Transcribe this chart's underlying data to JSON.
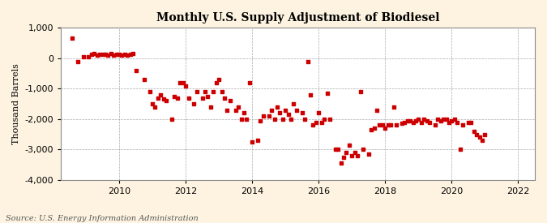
{
  "title": "Monthly U.S. Supply Adjustment of Biodiesel",
  "ylabel": "Thousand Barrels",
  "source": "Source: U.S. Energy Information Administration",
  "background_color": "#fdf3e0",
  "plot_background_color": "#ffffff",
  "marker_color": "#cc0000",
  "marker": "s",
  "marker_size": 3.5,
  "ylim": [
    -4000,
    1000
  ],
  "yticks": [
    -4000,
    -3000,
    -2000,
    -1000,
    0,
    1000
  ],
  "xlim_start": 2008.25,
  "xlim_end": 2022.5,
  "xticks": [
    2010,
    2012,
    2014,
    2016,
    2018,
    2020,
    2022
  ],
  "data": [
    [
      2008.583,
      650
    ],
    [
      2008.75,
      -100
    ],
    [
      2008.917,
      50
    ],
    [
      2009.083,
      50
    ],
    [
      2009.167,
      130
    ],
    [
      2009.25,
      150
    ],
    [
      2009.333,
      100
    ],
    [
      2009.417,
      130
    ],
    [
      2009.5,
      120
    ],
    [
      2009.583,
      130
    ],
    [
      2009.667,
      100
    ],
    [
      2009.75,
      150
    ],
    [
      2009.833,
      100
    ],
    [
      2009.917,
      120
    ],
    [
      2010.0,
      120
    ],
    [
      2010.083,
      100
    ],
    [
      2010.167,
      130
    ],
    [
      2010.25,
      100
    ],
    [
      2010.333,
      120
    ],
    [
      2010.417,
      150
    ],
    [
      2010.5,
      -400
    ],
    [
      2010.75,
      -700
    ],
    [
      2010.917,
      -1100
    ],
    [
      2011.0,
      -1500
    ],
    [
      2011.083,
      -1600
    ],
    [
      2011.167,
      -1300
    ],
    [
      2011.25,
      -1200
    ],
    [
      2011.333,
      -1350
    ],
    [
      2011.417,
      -1400
    ],
    [
      2011.583,
      -2000
    ],
    [
      2011.667,
      -1250
    ],
    [
      2011.75,
      -1300
    ],
    [
      2011.833,
      -800
    ],
    [
      2011.917,
      -800
    ],
    [
      2012.0,
      -900
    ],
    [
      2012.083,
      -1300
    ],
    [
      2012.25,
      -1500
    ],
    [
      2012.333,
      -1100
    ],
    [
      2012.5,
      -1300
    ],
    [
      2012.583,
      -1100
    ],
    [
      2012.667,
      -1250
    ],
    [
      2012.75,
      -1600
    ],
    [
      2012.833,
      -1100
    ],
    [
      2012.917,
      -800
    ],
    [
      2013.0,
      -700
    ],
    [
      2013.083,
      -1100
    ],
    [
      2013.167,
      -1300
    ],
    [
      2013.25,
      -1700
    ],
    [
      2013.333,
      -1400
    ],
    [
      2013.5,
      -1700
    ],
    [
      2013.583,
      -1600
    ],
    [
      2013.667,
      -2000
    ],
    [
      2013.75,
      -1800
    ],
    [
      2013.833,
      -2000
    ],
    [
      2013.917,
      -800
    ],
    [
      2014.0,
      -2750
    ],
    [
      2014.167,
      -2700
    ],
    [
      2014.25,
      -2050
    ],
    [
      2014.333,
      -1900
    ],
    [
      2014.5,
      -1900
    ],
    [
      2014.583,
      -1700
    ],
    [
      2014.667,
      -2000
    ],
    [
      2014.75,
      -1600
    ],
    [
      2014.833,
      -1800
    ],
    [
      2014.917,
      -2000
    ],
    [
      2015.0,
      -1700
    ],
    [
      2015.083,
      -1850
    ],
    [
      2015.167,
      -2000
    ],
    [
      2015.25,
      -1500
    ],
    [
      2015.333,
      -1700
    ],
    [
      2015.5,
      -1800
    ],
    [
      2015.583,
      -2000
    ],
    [
      2015.667,
      -100
    ],
    [
      2015.75,
      -1200
    ],
    [
      2015.833,
      -2200
    ],
    [
      2015.917,
      -2100
    ],
    [
      2016.0,
      -1800
    ],
    [
      2016.083,
      -2100
    ],
    [
      2016.167,
      -2000
    ],
    [
      2016.25,
      -1150
    ],
    [
      2016.333,
      -2000
    ],
    [
      2016.5,
      -3000
    ],
    [
      2016.583,
      -3000
    ],
    [
      2016.667,
      -3450
    ],
    [
      2016.75,
      -3250
    ],
    [
      2016.833,
      -3100
    ],
    [
      2016.917,
      -2850
    ],
    [
      2017.0,
      -3200
    ],
    [
      2017.083,
      -3100
    ],
    [
      2017.167,
      -3200
    ],
    [
      2017.25,
      -1100
    ],
    [
      2017.333,
      -3000
    ],
    [
      2017.5,
      -3150
    ],
    [
      2017.583,
      -2350
    ],
    [
      2017.667,
      -2300
    ],
    [
      2017.75,
      -1700
    ],
    [
      2017.833,
      -2200
    ],
    [
      2017.917,
      -2200
    ],
    [
      2018.0,
      -2300
    ],
    [
      2018.083,
      -2200
    ],
    [
      2018.167,
      -2200
    ],
    [
      2018.25,
      -1600
    ],
    [
      2018.333,
      -2200
    ],
    [
      2018.5,
      -2150
    ],
    [
      2018.583,
      -2100
    ],
    [
      2018.667,
      -2050
    ],
    [
      2018.75,
      -2050
    ],
    [
      2018.833,
      -2100
    ],
    [
      2018.917,
      -2050
    ],
    [
      2019.0,
      -2000
    ],
    [
      2019.083,
      -2100
    ],
    [
      2019.167,
      -2000
    ],
    [
      2019.25,
      -2050
    ],
    [
      2019.333,
      -2100
    ],
    [
      2019.5,
      -2200
    ],
    [
      2019.583,
      -2000
    ],
    [
      2019.667,
      -2050
    ],
    [
      2019.75,
      -2000
    ],
    [
      2019.833,
      -2000
    ],
    [
      2019.917,
      -2100
    ],
    [
      2020.0,
      -2050
    ],
    [
      2020.083,
      -2000
    ],
    [
      2020.167,
      -2100
    ],
    [
      2020.25,
      -3000
    ],
    [
      2020.333,
      -2200
    ],
    [
      2020.5,
      -2100
    ],
    [
      2020.583,
      -2100
    ],
    [
      2020.667,
      -2400
    ],
    [
      2020.75,
      -2500
    ],
    [
      2020.833,
      -2600
    ],
    [
      2020.917,
      -2700
    ],
    [
      2021.0,
      -2500
    ]
  ]
}
